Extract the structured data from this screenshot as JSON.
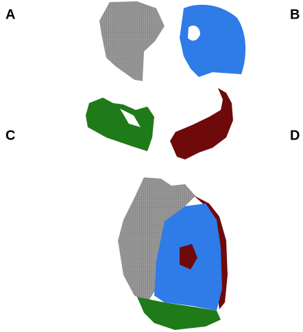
{
  "panels": {
    "a": {
      "label": "A"
    },
    "b": {
      "label": "B"
    },
    "c": {
      "label": "C"
    },
    "d": {
      "label": "D"
    }
  }
}
